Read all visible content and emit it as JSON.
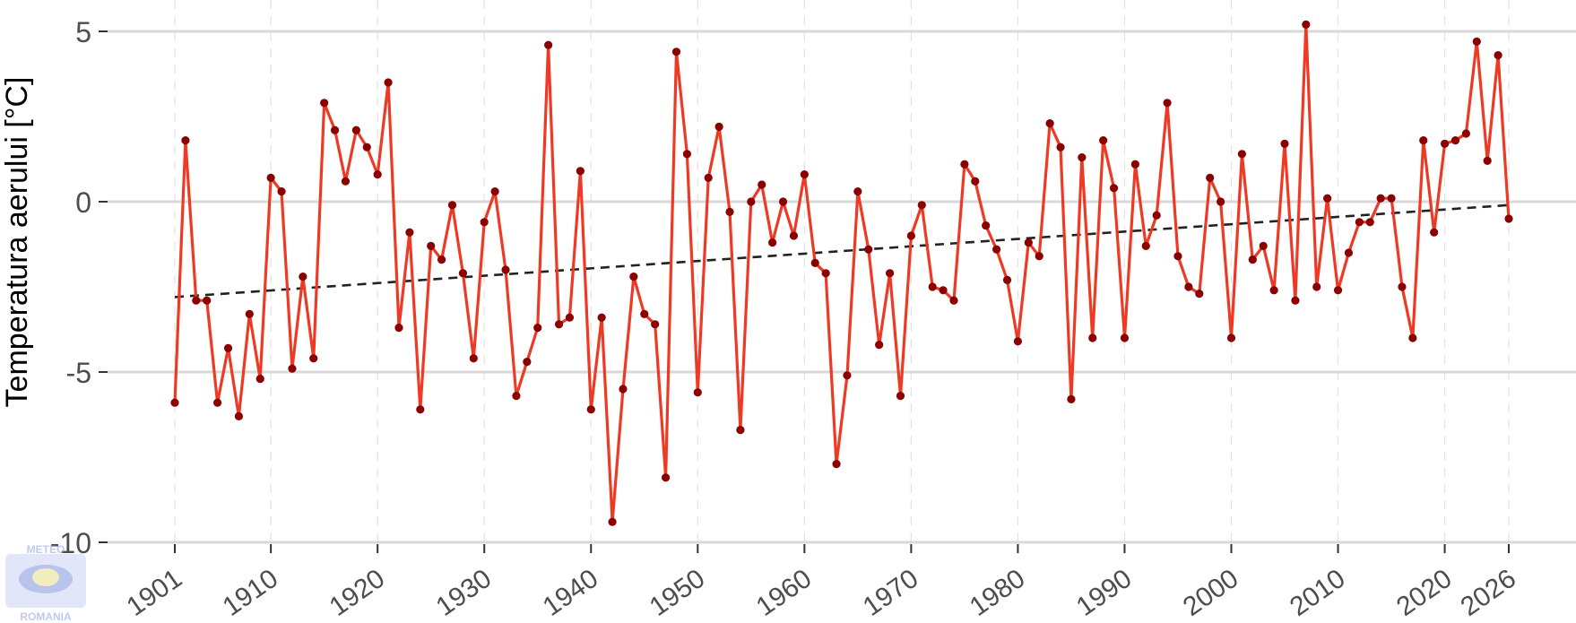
{
  "chart_data": {
    "type": "line",
    "title": "",
    "xlabel": "",
    "ylabel": "Temperatura aerului [°C]",
    "xlim": [
      1901,
      2026
    ],
    "ylim": [
      -10,
      5
    ],
    "x_ticks": [
      1901,
      1910,
      1920,
      1930,
      1940,
      1950,
      1960,
      1970,
      1980,
      1990,
      2000,
      2010,
      2020,
      2026
    ],
    "y_ticks": [
      5,
      0,
      -5,
      -10
    ],
    "grid": "horizontal major solid, vertical minor dashed",
    "legend": "none",
    "colors": {
      "line": "#ee3a24",
      "points": "#8b0000",
      "trend": "#222222",
      "grid": "#d9d9d9"
    },
    "series": [
      {
        "values": [
          [
            1901,
            -5.9
          ],
          [
            1902,
            1.8
          ],
          [
            1903,
            -2.9
          ],
          [
            1904,
            -2.9
          ],
          [
            1905,
            -5.9
          ],
          [
            1906,
            -4.3
          ],
          [
            1907,
            -6.3
          ],
          [
            1908,
            -3.3
          ],
          [
            1909,
            -5.2
          ],
          [
            1910,
            0.7
          ],
          [
            1911,
            0.3
          ],
          [
            1912,
            -4.9
          ],
          [
            1913,
            -2.2
          ],
          [
            1914,
            -4.6
          ],
          [
            1915,
            2.9
          ],
          [
            1916,
            2.1
          ],
          [
            1917,
            0.6
          ],
          [
            1918,
            2.1
          ],
          [
            1919,
            1.6
          ],
          [
            1920,
            0.8
          ],
          [
            1921,
            3.5
          ],
          [
            1922,
            -3.7
          ],
          [
            1923,
            -0.9
          ],
          [
            1924,
            -6.1
          ],
          [
            1925,
            -1.3
          ],
          [
            1926,
            -1.7
          ],
          [
            1927,
            -0.1
          ],
          [
            1928,
            -2.1
          ],
          [
            1929,
            -4.6
          ],
          [
            1930,
            -0.6
          ],
          [
            1931,
            0.3
          ],
          [
            1932,
            -2.0
          ],
          [
            1933,
            -5.7
          ],
          [
            1934,
            -4.7
          ],
          [
            1935,
            -3.7
          ],
          [
            1936,
            4.6
          ],
          [
            1937,
            -3.6
          ],
          [
            1938,
            -3.4
          ],
          [
            1939,
            0.9
          ],
          [
            1940,
            -6.1
          ],
          [
            1941,
            -3.4
          ],
          [
            1942,
            -9.4
          ],
          [
            1943,
            -5.5
          ],
          [
            1944,
            -2.2
          ],
          [
            1945,
            -3.3
          ],
          [
            1946,
            -3.6
          ],
          [
            1947,
            -8.1
          ],
          [
            1948,
            4.4
          ],
          [
            1949,
            1.4
          ],
          [
            1950,
            -5.6
          ],
          [
            1951,
            0.7
          ],
          [
            1952,
            2.2
          ],
          [
            1953,
            -0.3
          ],
          [
            1954,
            -6.7
          ],
          [
            1955,
            0.0
          ],
          [
            1956,
            0.5
          ],
          [
            1957,
            -1.2
          ],
          [
            1958,
            0.0
          ],
          [
            1959,
            -1.0
          ],
          [
            1960,
            0.8
          ],
          [
            1961,
            -1.8
          ],
          [
            1962,
            -2.1
          ],
          [
            1963,
            -7.7
          ],
          [
            1964,
            -5.1
          ],
          [
            1965,
            0.3
          ],
          [
            1966,
            -1.4
          ],
          [
            1967,
            -4.2
          ],
          [
            1968,
            -2.1
          ],
          [
            1969,
            -5.7
          ],
          [
            1970,
            -1.0
          ],
          [
            1971,
            -0.1
          ],
          [
            1972,
            -2.5
          ],
          [
            1973,
            -2.6
          ],
          [
            1974,
            -2.9
          ],
          [
            1975,
            1.1
          ],
          [
            1976,
            0.6
          ],
          [
            1977,
            -0.7
          ],
          [
            1978,
            -1.4
          ],
          [
            1979,
            -2.3
          ],
          [
            1980,
            -4.1
          ],
          [
            1981,
            -1.2
          ],
          [
            1982,
            -1.6
          ],
          [
            1983,
            2.3
          ],
          [
            1984,
            1.6
          ],
          [
            1985,
            -5.8
          ],
          [
            1986,
            1.3
          ],
          [
            1987,
            -4.0
          ],
          [
            1988,
            1.8
          ],
          [
            1989,
            0.4
          ],
          [
            1990,
            -4.0
          ],
          [
            1991,
            1.1
          ],
          [
            1992,
            -1.3
          ],
          [
            1993,
            -0.4
          ],
          [
            1994,
            2.9
          ],
          [
            1995,
            -1.6
          ],
          [
            1996,
            -2.5
          ],
          [
            1997,
            -2.7
          ],
          [
            1998,
            0.7
          ],
          [
            1999,
            0.0
          ],
          [
            2000,
            -4.0
          ],
          [
            2001,
            1.4
          ],
          [
            2002,
            -1.7
          ],
          [
            2003,
            -1.3
          ],
          [
            2004,
            -2.6
          ],
          [
            2005,
            1.7
          ],
          [
            2006,
            -2.9
          ],
          [
            2007,
            5.2
          ],
          [
            2008,
            -2.5
          ],
          [
            2009,
            0.1
          ],
          [
            2010,
            -2.6
          ],
          [
            2011,
            -1.5
          ],
          [
            2012,
            -0.6
          ],
          [
            2013,
            -0.6
          ],
          [
            2014,
            0.1
          ],
          [
            2015,
            0.1
          ],
          [
            2016,
            -2.5
          ],
          [
            2017,
            -4.0
          ],
          [
            2018,
            1.8
          ],
          [
            2019,
            -0.9
          ],
          [
            2020,
            1.7
          ],
          [
            2021,
            1.8
          ],
          [
            2022,
            2.0
          ],
          [
            2023,
            4.7
          ],
          [
            2024,
            1.2
          ],
          [
            2025,
            4.3
          ],
          [
            2026,
            -0.5
          ]
        ]
      }
    ],
    "trend": {
      "style": "dashed",
      "points": [
        [
          1901,
          -2.8
        ],
        [
          2026,
          -0.1
        ]
      ]
    }
  },
  "logo": {
    "text_top": "METEO",
    "text_bottom": "ROMANIA"
  }
}
